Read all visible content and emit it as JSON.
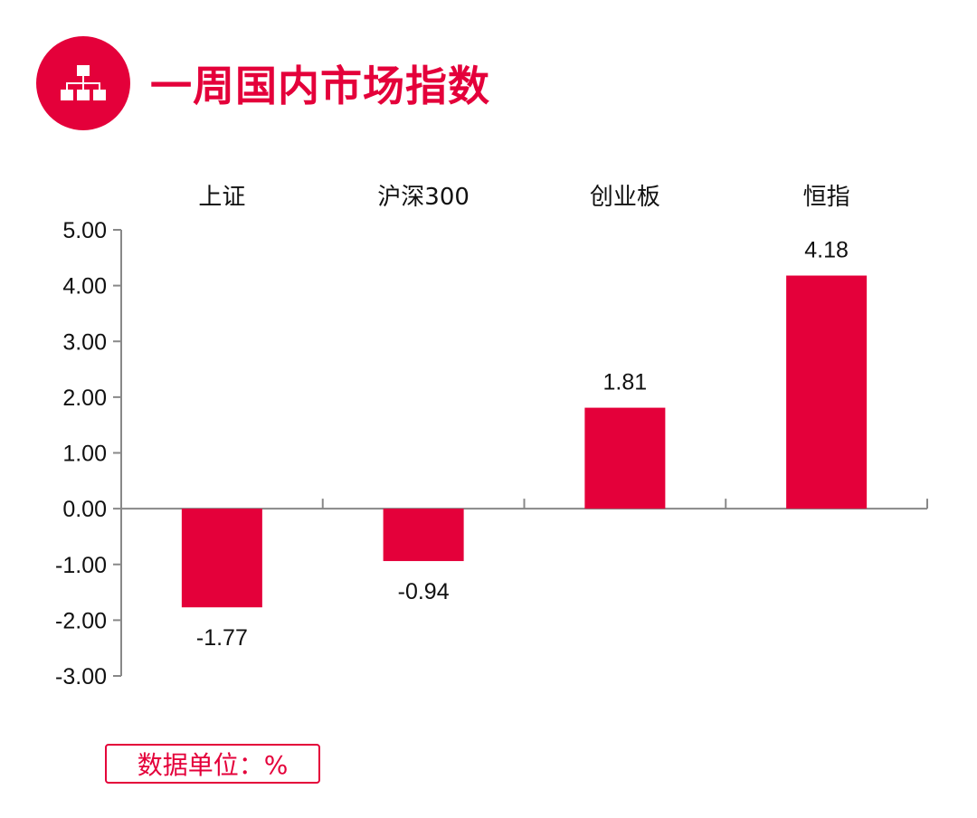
{
  "header": {
    "title": "一周国内市场指数",
    "icon": "hierarchy-icon"
  },
  "colors": {
    "accent": "#e4003a",
    "bar": "#e4003a",
    "axis": "#888888",
    "text": "#111111"
  },
  "unit_label": "数据单位：%",
  "chart_data": {
    "type": "bar",
    "categories": [
      "上证",
      "沪深300",
      "创业板",
      "恒指"
    ],
    "values": [
      -1.77,
      -0.94,
      1.81,
      4.18
    ],
    "data_labels": [
      "-1.77",
      "-0.94",
      "1.81",
      "4.18"
    ],
    "title": "",
    "xlabel": "",
    "ylabel": "",
    "ylim": [
      -3,
      5
    ],
    "yticks": [
      5,
      4,
      3,
      2,
      1,
      0,
      -1,
      -2,
      -3
    ],
    "ytick_labels": [
      "5.00",
      "4.00",
      "3.00",
      "2.00",
      "1.00",
      "0.00",
      "-1.00",
      "-2.00",
      "-3.00"
    ],
    "category_position": "top",
    "grid": false,
    "legend": "none"
  }
}
